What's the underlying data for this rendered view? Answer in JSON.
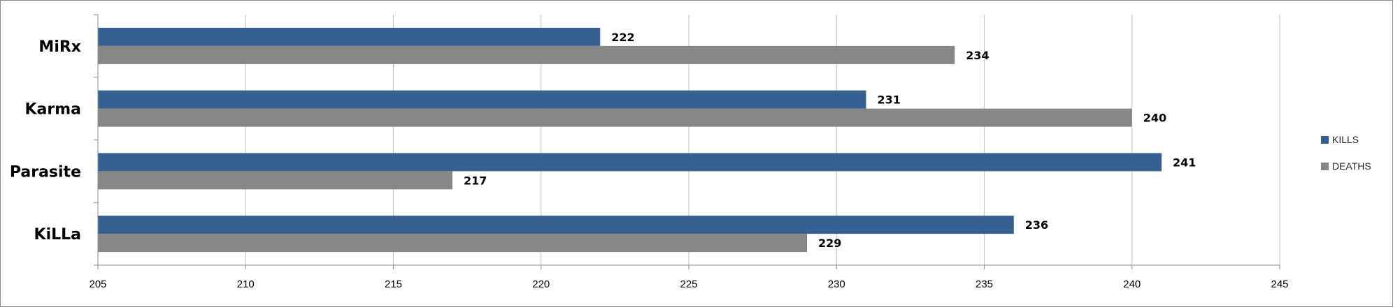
{
  "chart_data": {
    "type": "bar",
    "orientation": "horizontal",
    "categories": [
      "MiRx",
      "Karma",
      "Parasite",
      "KiLLa"
    ],
    "series": [
      {
        "name": "KILLS",
        "color": "#376092",
        "values": [
          222,
          231,
          241,
          236
        ]
      },
      {
        "name": "DEATHS",
        "color": "#878787",
        "values": [
          234,
          240,
          217,
          229
        ]
      }
    ],
    "xlim": [
      205,
      245
    ],
    "xticks": [
      205,
      210,
      215,
      220,
      225,
      230,
      235,
      240,
      245
    ],
    "grid": true,
    "legend": "right",
    "data_labels": true,
    "title": "",
    "xlabel": "",
    "ylabel": ""
  }
}
